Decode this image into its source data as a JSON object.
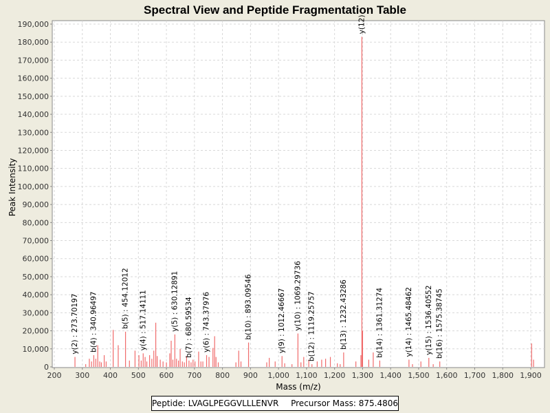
{
  "chart_data": {
    "type": "bar",
    "title": "Spectral View and Peptide Fragmentation Table",
    "xlabel": "Mass (m/z)",
    "ylabel": "Peak Intensity",
    "xlim": [
      200,
      1920
    ],
    "ylim": [
      0,
      195000
    ],
    "x_ticks": [
      "200",
      "300",
      "400",
      "500",
      "600",
      "700",
      "800",
      "900",
      "1,000",
      "1,100",
      "1,200",
      "1,300",
      "1,400",
      "1,500",
      "1,600",
      "1,700",
      "1,800",
      "1,900"
    ],
    "y_ticks": [
      "0",
      "10,000",
      "20,000",
      "30,000",
      "40,000",
      "50,000",
      "60,000",
      "70,000",
      "80,000",
      "90,000",
      "100,000",
      "110,000",
      "120,000",
      "130,000",
      "140,000",
      "150,000",
      "160,000",
      "170,000",
      "180,000",
      "190,000"
    ],
    "grid": true,
    "peak_color": "#f06a6a",
    "peaks": [
      {
        "mz": 273.7,
        "intensity": 5500
      },
      {
        "mz": 312,
        "intensity": 1500
      },
      {
        "mz": 325,
        "intensity": 4500
      },
      {
        "mz": 333,
        "intensity": 3000
      },
      {
        "mz": 340.9,
        "intensity": 6500
      },
      {
        "mz": 348,
        "intensity": 4500
      },
      {
        "mz": 355,
        "intensity": 12000
      },
      {
        "mz": 362,
        "intensity": 3000
      },
      {
        "mz": 368,
        "intensity": 2500
      },
      {
        "mz": 378,
        "intensity": 6500
      },
      {
        "mz": 385,
        "intensity": 3000
      },
      {
        "mz": 410,
        "intensity": 20500
      },
      {
        "mz": 428,
        "intensity": 12000
      },
      {
        "mz": 454.1,
        "intensity": 19500
      },
      {
        "mz": 468,
        "intensity": 3500
      },
      {
        "mz": 488,
        "intensity": 9000
      },
      {
        "mz": 502,
        "intensity": 6500
      },
      {
        "mz": 510,
        "intensity": 3500
      },
      {
        "mz": 517.1,
        "intensity": 7500
      },
      {
        "mz": 524,
        "intensity": 5500
      },
      {
        "mz": 530,
        "intensity": 3000
      },
      {
        "mz": 540,
        "intensity": 6500
      },
      {
        "mz": 548,
        "intensity": 4500
      },
      {
        "mz": 555,
        "intensity": 9000
      },
      {
        "mz": 562,
        "intensity": 24500
      },
      {
        "mz": 567,
        "intensity": 6000
      },
      {
        "mz": 578,
        "intensity": 4000
      },
      {
        "mz": 588,
        "intensity": 3000
      },
      {
        "mz": 600,
        "intensity": 2500
      },
      {
        "mz": 612,
        "intensity": 7500
      },
      {
        "mz": 617,
        "intensity": 14500
      },
      {
        "mz": 623,
        "intensity": 4000
      },
      {
        "mz": 630.1,
        "intensity": 18000
      },
      {
        "mz": 636,
        "intensity": 4500
      },
      {
        "mz": 643,
        "intensity": 3500
      },
      {
        "mz": 649,
        "intensity": 10000
      },
      {
        "mz": 657,
        "intensity": 3000
      },
      {
        "mz": 664,
        "intensity": 2500
      },
      {
        "mz": 672,
        "intensity": 6000
      },
      {
        "mz": 680.6,
        "intensity": 3500
      },
      {
        "mz": 688,
        "intensity": 2500
      },
      {
        "mz": 695,
        "intensity": 4000
      },
      {
        "mz": 702,
        "intensity": 3000
      },
      {
        "mz": 715,
        "intensity": 8500
      },
      {
        "mz": 723,
        "intensity": 3000
      },
      {
        "mz": 730,
        "intensity": 3000
      },
      {
        "mz": 743.4,
        "intensity": 6500
      },
      {
        "mz": 752,
        "intensity": 5500
      },
      {
        "mz": 766,
        "intensity": 10500
      },
      {
        "mz": 772,
        "intensity": 17000
      },
      {
        "mz": 777,
        "intensity": 5500
      },
      {
        "mz": 785,
        "intensity": 2500
      },
      {
        "mz": 848,
        "intensity": 2500
      },
      {
        "mz": 858,
        "intensity": 9000
      },
      {
        "mz": 866,
        "intensity": 3000
      },
      {
        "mz": 893.1,
        "intensity": 13500
      },
      {
        "mz": 958,
        "intensity": 2500
      },
      {
        "mz": 967,
        "intensity": 5000
      },
      {
        "mz": 988,
        "intensity": 3000
      },
      {
        "mz": 1012.5,
        "intensity": 6000
      },
      {
        "mz": 1022,
        "intensity": 2000
      },
      {
        "mz": 1048,
        "intensity": 1500
      },
      {
        "mz": 1069.3,
        "intensity": 18500
      },
      {
        "mz": 1080,
        "intensity": 2500
      },
      {
        "mz": 1090,
        "intensity": 5500
      },
      {
        "mz": 1108,
        "intensity": 4000
      },
      {
        "mz": 1119.3,
        "intensity": 1500
      },
      {
        "mz": 1138,
        "intensity": 3000
      },
      {
        "mz": 1154,
        "intensity": 4000
      },
      {
        "mz": 1168,
        "intensity": 4500
      },
      {
        "mz": 1185,
        "intensity": 5500
      },
      {
        "mz": 1210,
        "intensity": 2000
      },
      {
        "mz": 1220,
        "intensity": 1500
      },
      {
        "mz": 1232.4,
        "intensity": 8000
      },
      {
        "mz": 1276,
        "intensity": 3000
      },
      {
        "mz": 1294,
        "intensity": 6500
      },
      {
        "mz": 1297.5,
        "intensity": 183000
      },
      {
        "mz": 1300,
        "intensity": 20000
      },
      {
        "mz": 1322,
        "intensity": 4000
      },
      {
        "mz": 1338,
        "intensity": 8000
      },
      {
        "mz": 1361.3,
        "intensity": 3500
      },
      {
        "mz": 1465.5,
        "intensity": 4000
      },
      {
        "mz": 1478,
        "intensity": 1500
      },
      {
        "mz": 1508,
        "intensity": 3000
      },
      {
        "mz": 1536.4,
        "intensity": 5000
      },
      {
        "mz": 1552,
        "intensity": 1500
      },
      {
        "mz": 1575.4,
        "intensity": 3000
      },
      {
        "mz": 1903,
        "intensity": 13000
      },
      {
        "mz": 1910,
        "intensity": 4000
      }
    ],
    "annotations": [
      {
        "label": "y(2) : 273.70197",
        "mz": 273.7,
        "intensity": 5500
      },
      {
        "label": "b(4) : 340.96497",
        "mz": 340.9,
        "intensity": 6500
      },
      {
        "label": "b(5) : 454.12012",
        "mz": 454.1,
        "intensity": 19500
      },
      {
        "label": "y(4) : 517.14111",
        "mz": 517.1,
        "intensity": 7500
      },
      {
        "label": "y(5) : 630.12891",
        "mz": 630.1,
        "intensity": 18000
      },
      {
        "label": "b(7) : 680.59534",
        "mz": 680.6,
        "intensity": 3500
      },
      {
        "label": "y(6) : 743.37976",
        "mz": 743.4,
        "intensity": 6500
      },
      {
        "label": "b(10) : 893.09546",
        "mz": 893.1,
        "intensity": 13500
      },
      {
        "label": "y(9) : 1012.46667",
        "mz": 1012.5,
        "intensity": 6000
      },
      {
        "label": "y(10) : 1069.29736",
        "mz": 1069.3,
        "intensity": 18500
      },
      {
        "label": "b(12) : 1119.25757",
        "mz": 1119.3,
        "intensity": 1500
      },
      {
        "label": "b(13) : 1232.43286",
        "mz": 1232.4,
        "intensity": 8000
      },
      {
        "label": "y(12)",
        "mz": 1297.5,
        "intensity": 183000
      },
      {
        "label": "b(14) : 1361.31274",
        "mz": 1361.3,
        "intensity": 3500
      },
      {
        "label": "y(14) : 1465.48462",
        "mz": 1465.5,
        "intensity": 4000
      },
      {
        "label": "y(15) : 1536.40552",
        "mz": 1536.4,
        "intensity": 5000
      },
      {
        "label": "b(16) : 1575.38745",
        "mz": 1575.4,
        "intensity": 3000
      }
    ]
  },
  "footer": {
    "peptide": "Peptide: LVAGLPEGGVLLLENVR",
    "precursor": "Precursor Mass: 875.4806"
  }
}
